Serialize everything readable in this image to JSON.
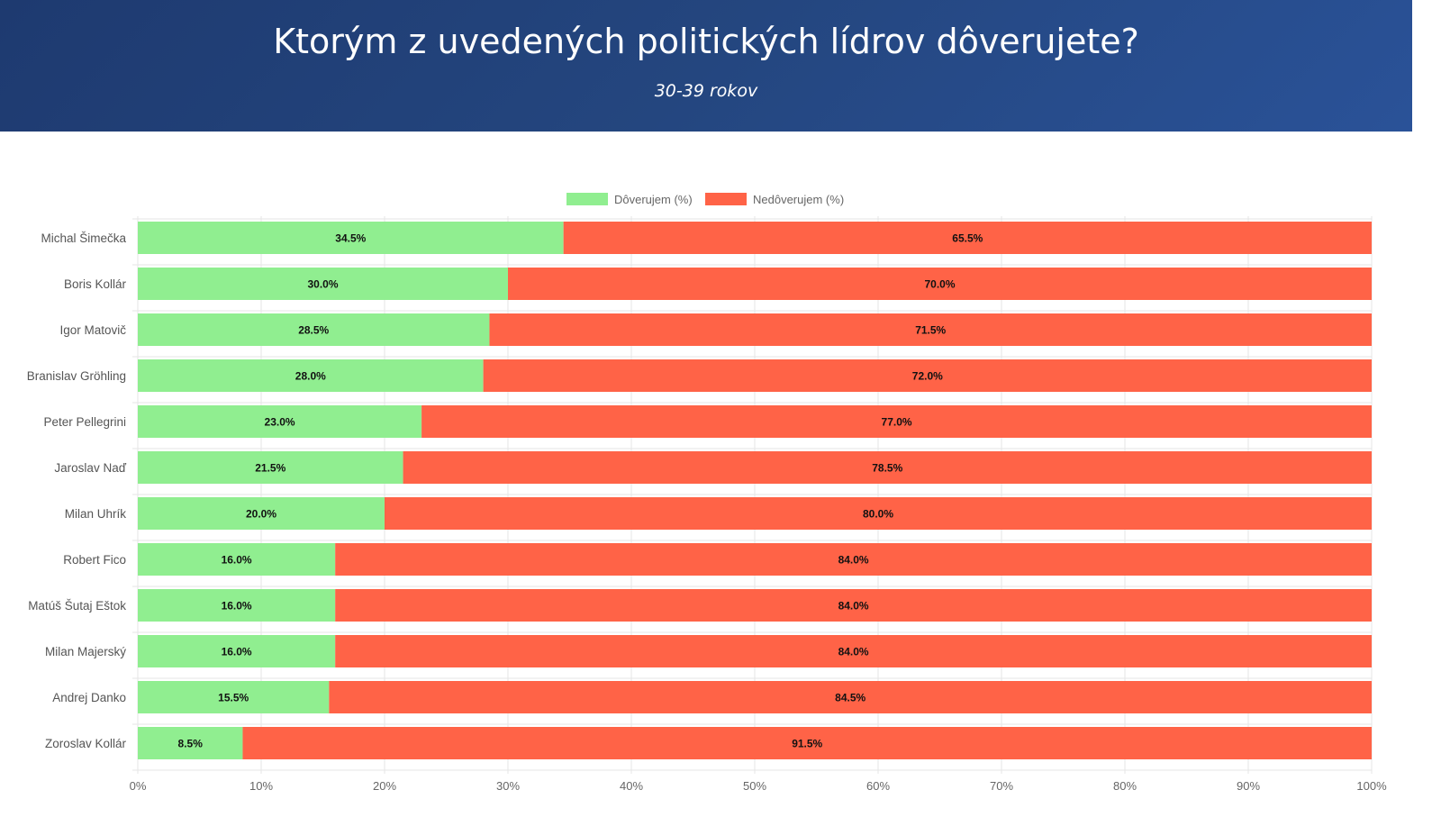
{
  "header": {
    "title": "Ktorým z uvedených politických lídrov dôverujete?",
    "subtitle": "30-39 rokov"
  },
  "chart_data": {
    "type": "bar",
    "orientation": "horizontal",
    "stacked": true,
    "categories": [
      "Michal Šimečka",
      "Boris Kollár",
      "Igor Matovič",
      "Branislav Gröhling",
      "Peter Pellegrini",
      "Jaroslav Naď",
      "Milan Uhrík",
      "Robert Fico",
      "Matúš Šutaj Eštok",
      "Milan Majerský",
      "Andrej Danko",
      "Zoroslav Kollár"
    ],
    "series": [
      {
        "name": "Dôverujem (%)",
        "color": "#90ee90",
        "values": [
          34.5,
          30.0,
          28.5,
          28.0,
          23.0,
          21.5,
          20.0,
          16.0,
          16.0,
          16.0,
          15.5,
          8.5
        ]
      },
      {
        "name": "Nedôverujem (%)",
        "color": "#ff6347",
        "values": [
          65.5,
          70.0,
          71.5,
          72.0,
          77.0,
          78.5,
          80.0,
          84.0,
          84.0,
          84.0,
          84.5,
          91.5
        ]
      }
    ],
    "xlim": [
      0,
      100
    ],
    "xticks": [
      "0%",
      "10%",
      "20%",
      "30%",
      "40%",
      "50%",
      "60%",
      "70%",
      "80%",
      "90%",
      "100%"
    ],
    "grid": true,
    "legend_position": "top-center",
    "data_labels": true
  }
}
